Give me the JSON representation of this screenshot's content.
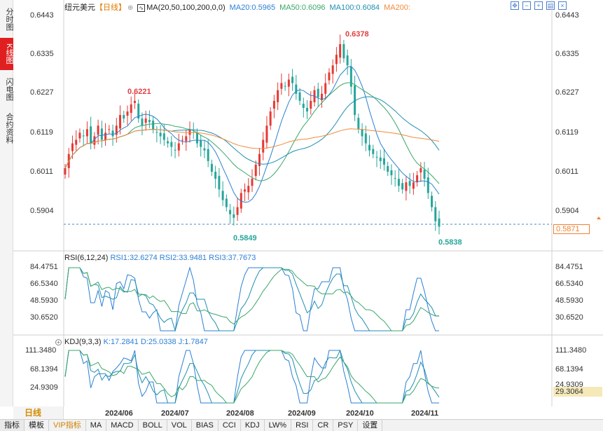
{
  "left_tabs": [
    {
      "label": "分时图",
      "active": false
    },
    {
      "label": "K线图",
      "active": true
    },
    {
      "label": "闪电图",
      "active": false
    },
    {
      "label": "合约资料",
      "active": false
    }
  ],
  "header": {
    "symbol": "纽元美元",
    "period": "【日线】",
    "ma_title": "MA(20,50,100,200,0,0)",
    "ma20": "MA20:0.5965",
    "ma50": "MA50:0.6096",
    "ma100": "MA100:0.6084",
    "ma200": "MA200:"
  },
  "toolbar_icons": [
    "expand-icon",
    "zoom-out-icon",
    "zoom-in-icon",
    "chart-type-icon",
    "close-icon"
  ],
  "price_axis": {
    "ticks": [
      "0.6443",
      "0.6335",
      "0.6227",
      "0.6119",
      "0.6011",
      "0.5904"
    ],
    "current_price": "0.5871"
  },
  "annotations": {
    "high1": "0.6221",
    "high2": "0.6378",
    "low1": "0.5849",
    "low2": "0.5838"
  },
  "rsi": {
    "title": "RSI(6,12,24)",
    "rsi1": "RSI1:32.6274",
    "rsi2": "RSI2:33.9481",
    "rsi3": "RSI3:37.7673",
    "ticks": [
      "84.4751",
      "66.5340",
      "48.5930",
      "30.6520"
    ]
  },
  "kdj": {
    "title": "KDJ(9,3,3)",
    "k": "K:17.2841",
    "d": "D:25.0338",
    "j": "J:1.7847",
    "ticks": [
      "111.3480",
      "68.1394",
      "24.9309"
    ],
    "current": "29.3064"
  },
  "period_label": "日线",
  "dates": [
    "2024/06",
    "2024/07",
    "2024/08",
    "2024/09",
    "2024/10",
    "2024/11"
  ],
  "bottom_tabs": [
    {
      "label": "指标",
      "active": true,
      "vip": false
    },
    {
      "label": "模板",
      "active": false,
      "vip": false
    },
    {
      "label": "VIP指标",
      "active": false,
      "vip": true
    },
    {
      "label": "MA",
      "active": false,
      "vip": false
    },
    {
      "label": "MACD",
      "active": false,
      "vip": false
    },
    {
      "label": "BOLL",
      "active": false,
      "vip": false
    },
    {
      "label": "VOL",
      "active": false,
      "vip": false
    },
    {
      "label": "BIAS",
      "active": false,
      "vip": false
    },
    {
      "label": "CCI",
      "active": false,
      "vip": false
    },
    {
      "label": "KDJ",
      "active": false,
      "vip": false
    },
    {
      "label": "LW%",
      "active": false,
      "vip": false
    },
    {
      "label": "RSI",
      "active": false,
      "vip": false
    },
    {
      "label": "CR",
      "active": false,
      "vip": false
    },
    {
      "label": "PSY",
      "active": false,
      "vip": false
    },
    {
      "label": "设置",
      "active": false,
      "vip": false
    }
  ],
  "colors": {
    "up": "#e53935",
    "down": "#26a69a",
    "ma20": "#2b7fd4",
    "ma50": "#3aa66a",
    "ma100": "#1f8fb0",
    "ma200": "#f08a3a"
  },
  "chart_data": {
    "type": "candlestick",
    "ylim": [
      0.583,
      0.6443
    ],
    "candle_closes": [
      0.601,
      0.605,
      0.608,
      0.609,
      0.611,
      0.61,
      0.612,
      0.608,
      0.61,
      0.613,
      0.609,
      0.611,
      0.612,
      0.61,
      0.613,
      0.616,
      0.615,
      0.617,
      0.619,
      0.62,
      0.615,
      0.613,
      0.615,
      0.614,
      0.612,
      0.611,
      0.61,
      0.609,
      0.608,
      0.607,
      0.606,
      0.608,
      0.609,
      0.61,
      0.612,
      0.611,
      0.608,
      0.607,
      0.606,
      0.603,
      0.6,
      0.598,
      0.595,
      0.592,
      0.59,
      0.588,
      0.587,
      0.59,
      0.594,
      0.595,
      0.596,
      0.598,
      0.602,
      0.605,
      0.609,
      0.613,
      0.617,
      0.62,
      0.623,
      0.625,
      0.624,
      0.626,
      0.625,
      0.622,
      0.62,
      0.618,
      0.617,
      0.62,
      0.623,
      0.621,
      0.622,
      0.625,
      0.628,
      0.63,
      0.633,
      0.636,
      0.632,
      0.63,
      0.624,
      0.616,
      0.612,
      0.61,
      0.608,
      0.606,
      0.605,
      0.604,
      0.603,
      0.602,
      0.6,
      0.599,
      0.598,
      0.596,
      0.595,
      0.597,
      0.596,
      0.597,
      0.599,
      0.601,
      0.598,
      0.594,
      0.59,
      0.586,
      0.5845
    ]
  }
}
